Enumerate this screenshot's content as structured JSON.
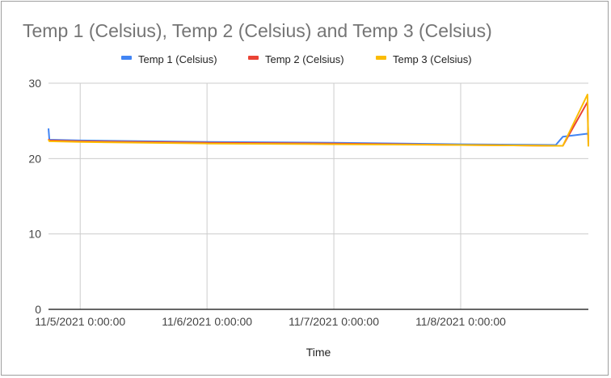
{
  "chart_data": {
    "type": "line",
    "title": "Temp 1 (Celsius), Temp 2 (Celsius) and Temp 3 (Celsius)",
    "xlabel": "Time",
    "ylabel": "",
    "ylim": [
      0,
      30
    ],
    "yticks": [
      0,
      10,
      20,
      30
    ],
    "xticks": [
      "11/5/2021 0:00:00",
      "11/6/2021 0:00:00",
      "11/7/2021 0:00:00",
      "11/8/2021 0:00:00"
    ],
    "legend_position": "top",
    "grid": true,
    "series": [
      {
        "name": "Temp 1 (Celsius)",
        "color": "#4285f4",
        "x": [
          "11/4/2021 18:00:00",
          "11/4/2021 18:10:00",
          "11/5/2021 0:00:00",
          "11/6/2021 0:00:00",
          "11/7/2021 0:00:00",
          "11/8/2021 0:00:00",
          "11/8/2021 18:00:00",
          "11/8/2021 19:20:00",
          "11/9/2021 0:00:00",
          "11/9/2021 0:10:00"
        ],
        "values": [
          24.0,
          22.5,
          22.4,
          22.2,
          22.1,
          21.9,
          21.8,
          22.9,
          23.3,
          23.0
        ]
      },
      {
        "name": "Temp 2 (Celsius)",
        "color": "#ea4335",
        "x": [
          "11/4/2021 18:00:00",
          "11/4/2021 18:10:00",
          "11/5/2021 0:00:00",
          "11/6/2021 0:00:00",
          "11/7/2021 0:00:00",
          "11/8/2021 0:00:00",
          "11/8/2021 18:00:00",
          "11/8/2021 19:20:00",
          "11/9/2021 0:00:00",
          "11/9/2021 0:10:00"
        ],
        "values": [
          22.6,
          22.4,
          22.3,
          22.1,
          22.0,
          21.8,
          21.7,
          21.7,
          27.5,
          21.8
        ]
      },
      {
        "name": "Temp 3 (Celsius)",
        "color": "#fbbc04",
        "x": [
          "11/4/2021 18:00:00",
          "11/4/2021 18:10:00",
          "11/5/2021 0:00:00",
          "11/6/2021 0:00:00",
          "11/7/2021 0:00:00",
          "11/8/2021 0:00:00",
          "11/8/2021 18:00:00",
          "11/8/2021 19:20:00",
          "11/9/2021 0:00:00",
          "11/9/2021 0:10:00"
        ],
        "values": [
          22.5,
          22.3,
          22.2,
          22.0,
          21.9,
          21.8,
          21.7,
          21.7,
          28.5,
          21.6
        ]
      }
    ]
  }
}
